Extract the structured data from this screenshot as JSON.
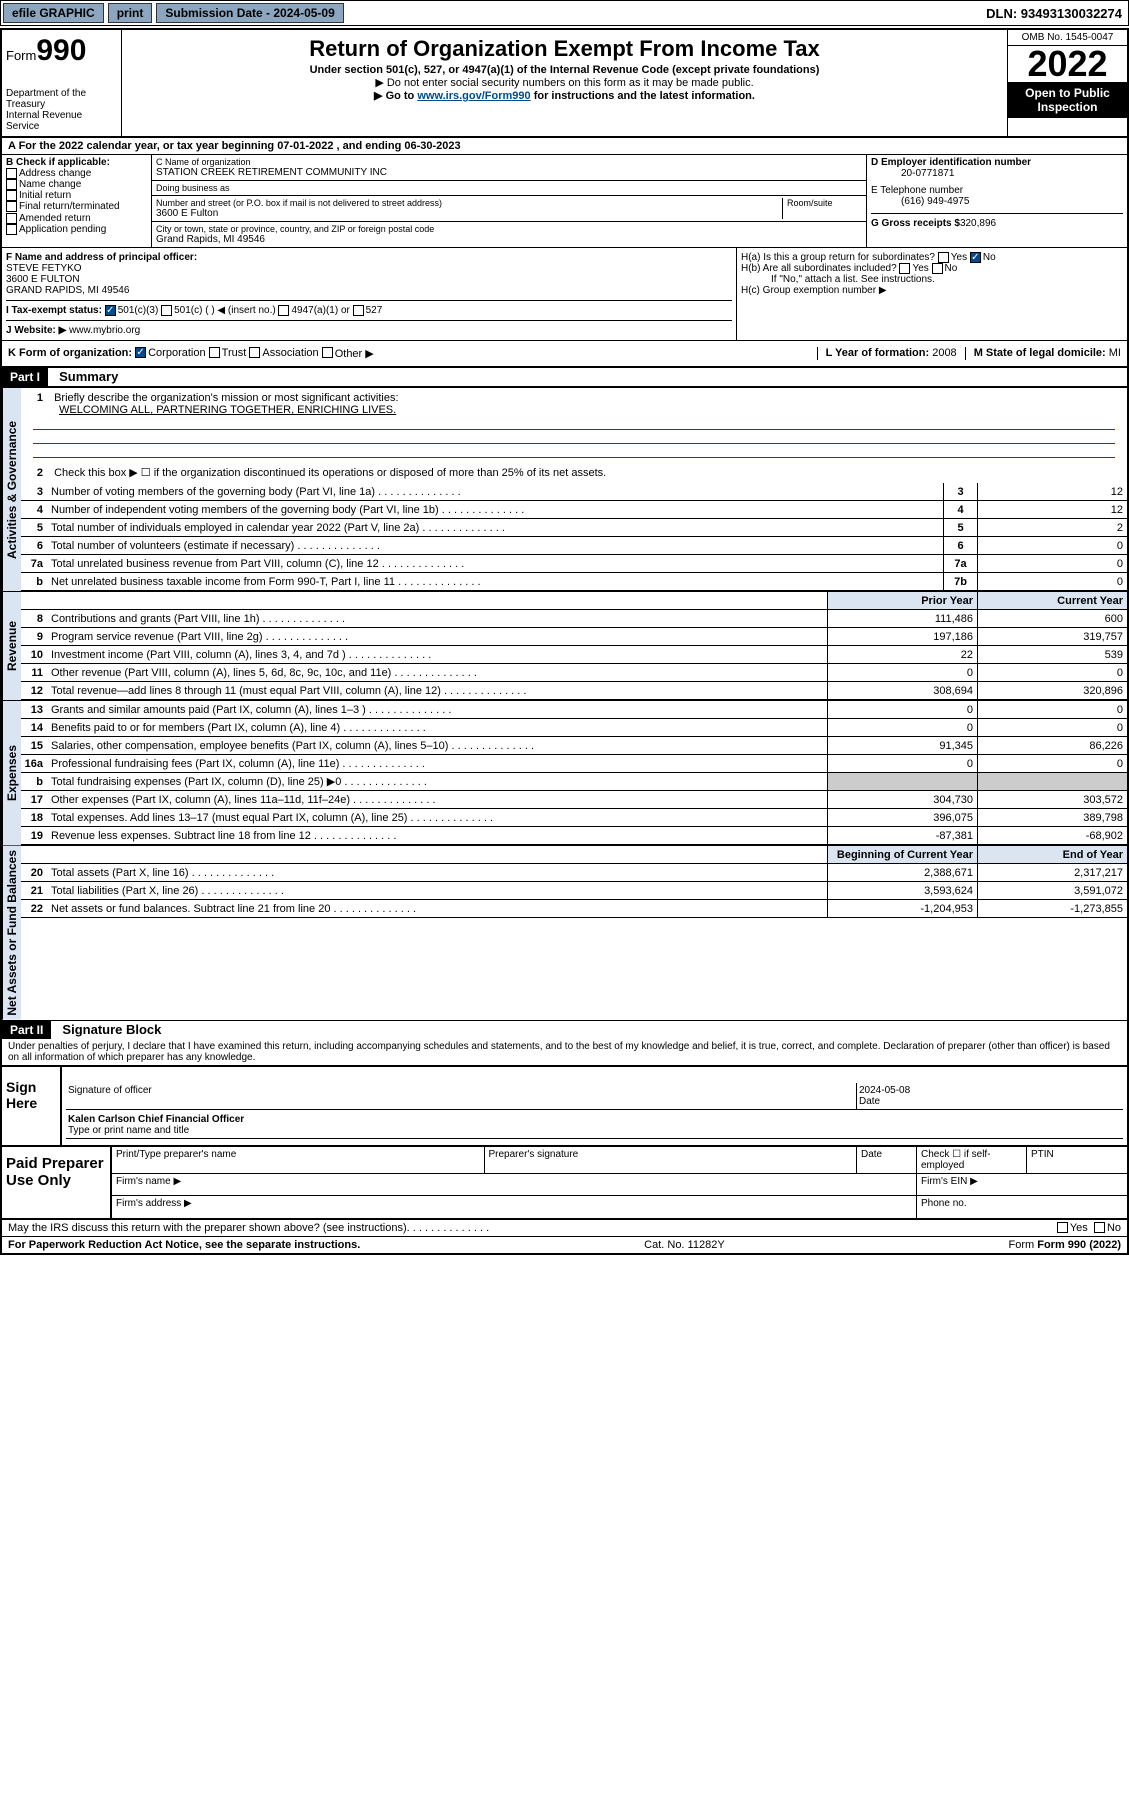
{
  "top_bar": {
    "efile": "efile GRAPHIC",
    "print": "print",
    "sub_date_label": "Submission Date - 2024-05-09",
    "dln": "DLN: 93493130032274"
  },
  "header": {
    "form_label": "Form",
    "form_num": "990",
    "dept": "Department of the Treasury",
    "irs": "Internal Revenue Service",
    "title": "Return of Organization Exempt From Income Tax",
    "subtitle": "Under section 501(c), 527, or 4947(a)(1) of the Internal Revenue Code (except private foundations)",
    "note1": "▶ Do not enter social security numbers on this form as it may be made public.",
    "note2_pre": "▶ Go to ",
    "note2_link": "www.irs.gov/Form990",
    "note2_post": " for instructions and the latest information.",
    "omb": "OMB No. 1545-0047",
    "year": "2022",
    "inspection": "Open to Public Inspection"
  },
  "row_a": {
    "text": "A For the 2022 calendar year, or tax year beginning 07-01-2022   , and ending 06-30-2023"
  },
  "col_b": {
    "label": "B Check if applicable:",
    "items": [
      "Address change",
      "Name change",
      "Initial return",
      "Final return/terminated",
      "Amended return",
      "Application pending"
    ]
  },
  "col_c": {
    "name_label": "C Name of organization",
    "name": "STATION CREEK RETIREMENT COMMUNITY INC",
    "dba_label": "Doing business as",
    "dba": "",
    "addr_label": "Number and street (or P.O. box if mail is not delivered to street address)",
    "room_label": "Room/suite",
    "addr": "3600 E Fulton",
    "city_label": "City or town, state or province, country, and ZIP or foreign postal code",
    "city": "Grand Rapids, MI  49546"
  },
  "col_d": {
    "ein_label": "D Employer identification number",
    "ein": "20-0771871",
    "phone_label": "E Telephone number",
    "phone": "(616) 949-4975",
    "gross_label": "G Gross receipts $",
    "gross": "320,896"
  },
  "officer": {
    "label": "F  Name and address of principal officer:",
    "name": "STEVE FETYKO",
    "addr": "3600 E FULTON",
    "city": "GRAND RAPIDS, MI  49546"
  },
  "h_block": {
    "ha": "H(a)  Is this a group return for subordinates?",
    "hb": "H(b)  Are all subordinates included?",
    "hb_note": "If \"No,\" attach a list. See instructions.",
    "hc": "H(c)  Group exemption number ▶"
  },
  "row_i": {
    "label": "I  Tax-exempt status:",
    "opts": [
      "501(c)(3)",
      "501(c) (   ) ◀ (insert no.)",
      "4947(a)(1) or",
      "527"
    ]
  },
  "row_j": {
    "label": "J  Website: ▶ ",
    "val": "www.mybrio.org"
  },
  "row_k": {
    "label": "K Form of organization:",
    "opts": [
      "Corporation",
      "Trust",
      "Association",
      "Other ▶"
    ],
    "year_label": "L Year of formation: ",
    "year": "2008",
    "state_label": "M State of legal domicile: ",
    "state": "MI"
  },
  "part1": {
    "head": "Part I",
    "title": "Summary",
    "line1": "Briefly describe the organization's mission or most significant activities:",
    "mission": "WELCOMING ALL, PARTNERING TOGETHER, ENRICHING LIVES.",
    "line2": "Check this box ▶ ☐  if the organization discontinued its operations or disposed of more than 25% of its net assets.",
    "lines_single": [
      {
        "n": "3",
        "d": "Number of voting members of the governing body (Part VI, line 1a)",
        "b": "3",
        "v": "12"
      },
      {
        "n": "4",
        "d": "Number of independent voting members of the governing body (Part VI, line 1b)",
        "b": "4",
        "v": "12"
      },
      {
        "n": "5",
        "d": "Total number of individuals employed in calendar year 2022 (Part V, line 2a)",
        "b": "5",
        "v": "2"
      },
      {
        "n": "6",
        "d": "Total number of volunteers (estimate if necessary)",
        "b": "6",
        "v": "0"
      },
      {
        "n": "7a",
        "d": "Total unrelated business revenue from Part VIII, column (C), line 12",
        "b": "7a",
        "v": "0"
      },
      {
        "n": "b",
        "d": "Net unrelated business taxable income from Form 990-T, Part I, line 11",
        "b": "7b",
        "v": "0"
      }
    ],
    "prior_label": "Prior Year",
    "current_label": "Current Year",
    "beg_label": "Beginning of Current Year",
    "end_label": "End of Year",
    "revenue": [
      {
        "n": "8",
        "d": "Contributions and grants (Part VIII, line 1h)",
        "p": "111,486",
        "c": "600"
      },
      {
        "n": "9",
        "d": "Program service revenue (Part VIII, line 2g)",
        "p": "197,186",
        "c": "319,757"
      },
      {
        "n": "10",
        "d": "Investment income (Part VIII, column (A), lines 3, 4, and 7d )",
        "p": "22",
        "c": "539"
      },
      {
        "n": "11",
        "d": "Other revenue (Part VIII, column (A), lines 5, 6d, 8c, 9c, 10c, and 11e)",
        "p": "0",
        "c": "0"
      },
      {
        "n": "12",
        "d": "Total revenue—add lines 8 through 11 (must equal Part VIII, column (A), line 12)",
        "p": "308,694",
        "c": "320,896"
      }
    ],
    "expenses": [
      {
        "n": "13",
        "d": "Grants and similar amounts paid (Part IX, column (A), lines 1–3 )",
        "p": "0",
        "c": "0"
      },
      {
        "n": "14",
        "d": "Benefits paid to or for members (Part IX, column (A), line 4)",
        "p": "0",
        "c": "0"
      },
      {
        "n": "15",
        "d": "Salaries, other compensation, employee benefits (Part IX, column (A), lines 5–10)",
        "p": "91,345",
        "c": "86,226"
      },
      {
        "n": "16a",
        "d": "Professional fundraising fees (Part IX, column (A), line 11e)",
        "p": "0",
        "c": "0"
      },
      {
        "n": "b",
        "d": "Total fundraising expenses (Part IX, column (D), line 25) ▶0",
        "p": "",
        "c": ""
      },
      {
        "n": "17",
        "d": "Other expenses (Part IX, column (A), lines 11a–11d, 11f–24e)",
        "p": "304,730",
        "c": "303,572"
      },
      {
        "n": "18",
        "d": "Total expenses. Add lines 13–17 (must equal Part IX, column (A), line 25)",
        "p": "396,075",
        "c": "389,798"
      },
      {
        "n": "19",
        "d": "Revenue less expenses. Subtract line 18 from line 12",
        "p": "-87,381",
        "c": "-68,902"
      }
    ],
    "netassets": [
      {
        "n": "20",
        "d": "Total assets (Part X, line 16)",
        "p": "2,388,671",
        "c": "2,317,217"
      },
      {
        "n": "21",
        "d": "Total liabilities (Part X, line 26)",
        "p": "3,593,624",
        "c": "3,591,072"
      },
      {
        "n": "22",
        "d": "Net assets or fund balances. Subtract line 21 from line 20",
        "p": "-1,204,953",
        "c": "-1,273,855"
      }
    ]
  },
  "part2": {
    "head": "Part II",
    "title": "Signature Block",
    "penalties": "Under penalties of perjury, I declare that I have examined this return, including accompanying schedules and statements, and to the best of my knowledge and belief, it is true, correct, and complete. Declaration of preparer (other than officer) is based on all information of which preparer has any knowledge."
  },
  "sign": {
    "label": "Sign Here",
    "sig_label": "Signature of officer",
    "date_label": "Date",
    "date": "2024-05-08",
    "name": "Kalen Carlson  Chief Financial Officer",
    "name_label": "Type or print name and title"
  },
  "paid": {
    "label": "Paid Preparer Use Only",
    "prep_name_label": "Print/Type preparer's name",
    "prep_sig_label": "Preparer's signature",
    "date_label": "Date",
    "check_label": "Check ☐ if self-employed",
    "ptin_label": "PTIN",
    "firm_name_label": "Firm's name   ▶",
    "firm_ein_label": "Firm's EIN ▶",
    "firm_addr_label": "Firm's address ▶",
    "phone_label": "Phone no."
  },
  "footer": {
    "discuss": "May the IRS discuss this return with the preparer shown above? (see instructions)",
    "yes": "Yes",
    "no": "No",
    "paperwork": "For Paperwork Reduction Act Notice, see the separate instructions.",
    "cat": "Cat. No. 11282Y",
    "form": "Form 990 (2022)"
  },
  "rot_labels": {
    "ag": "Activities & Governance",
    "rev": "Revenue",
    "exp": "Expenses",
    "na": "Net Assets or Fund Balances"
  }
}
